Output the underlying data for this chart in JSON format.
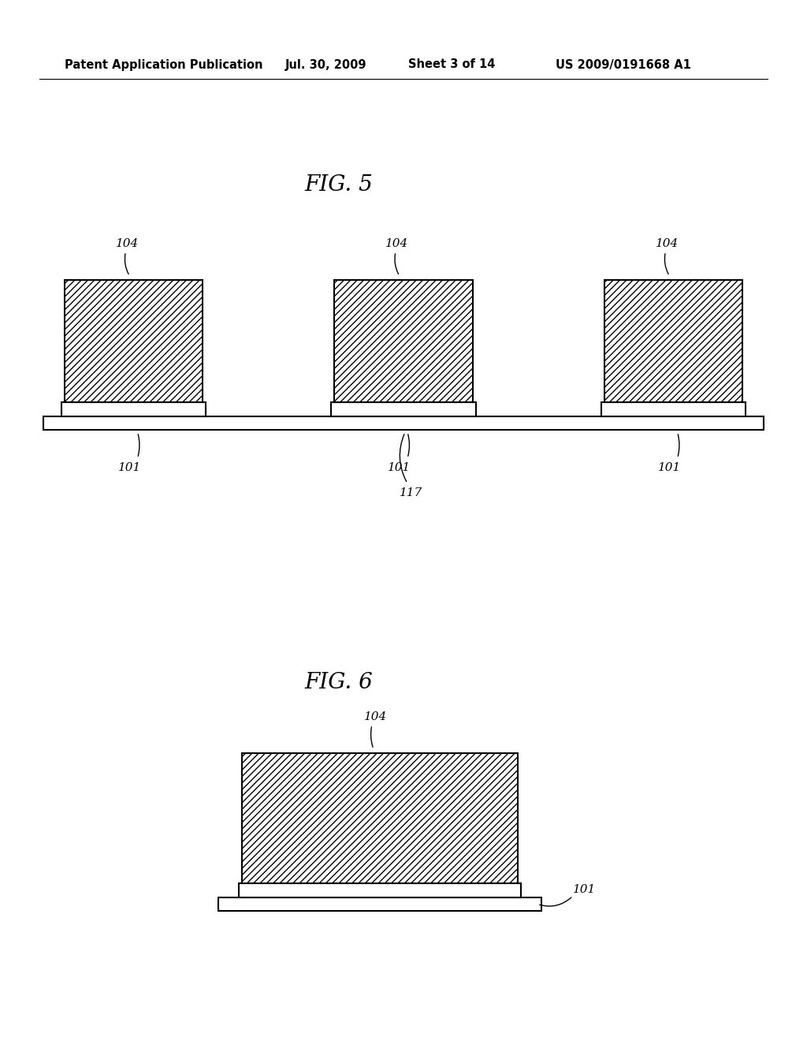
{
  "bg_color": "#ffffff",
  "header_text": "Patent Application Publication",
  "header_date": "Jul. 30, 2009",
  "header_sheet": "Sheet 3 of 14",
  "header_patent": "US 2009/0191668 A1",
  "fig5_title": "FIG. 5",
  "fig6_title": "FIG. 6",
  "label_104": "104",
  "label_101": "101",
  "label_117": "117",
  "page_width": 10.24,
  "page_height": 13.2,
  "dpi": 100
}
